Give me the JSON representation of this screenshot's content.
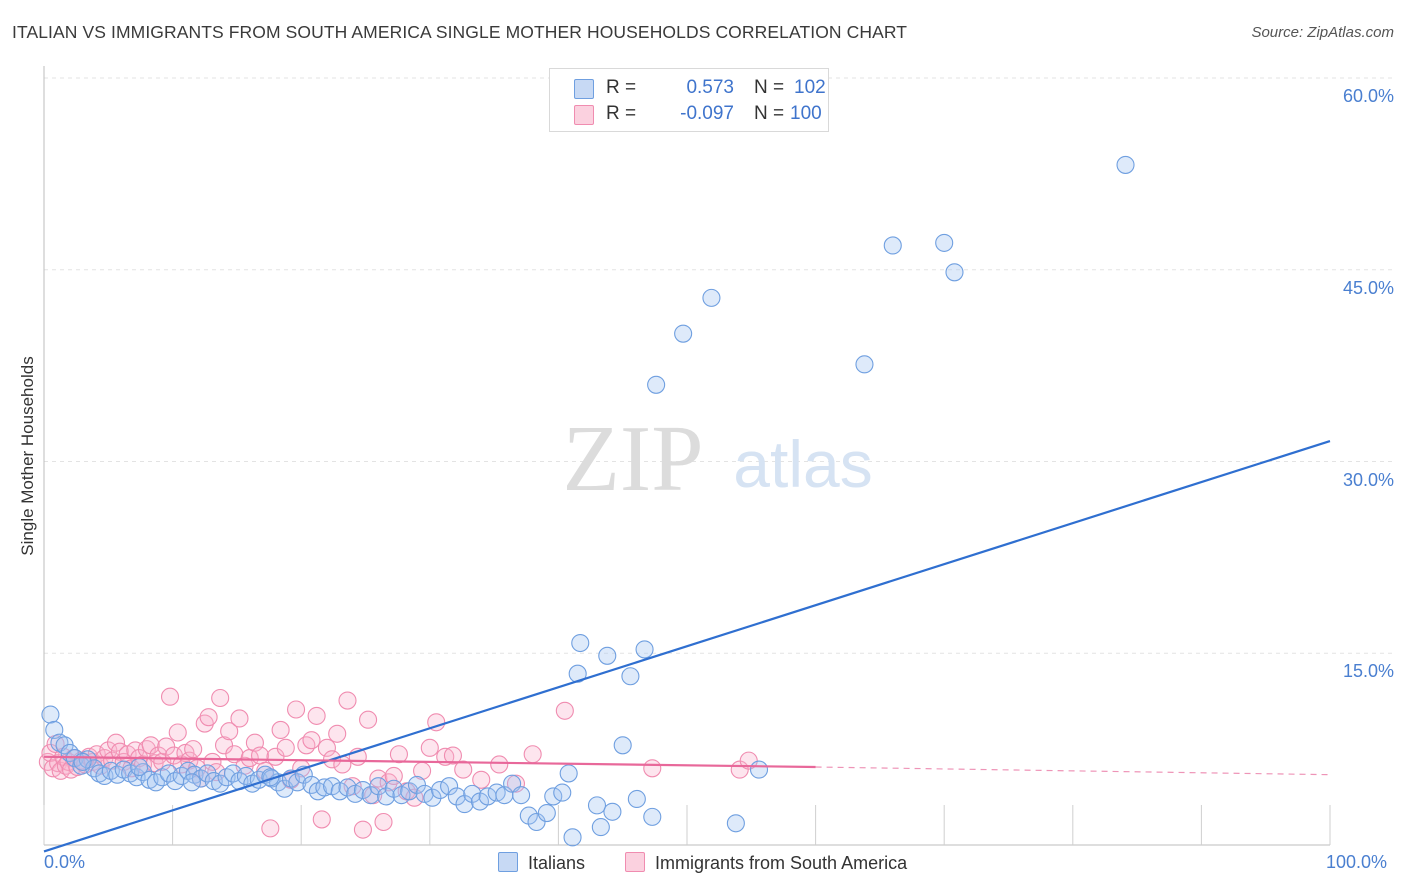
{
  "title": "ITALIAN VS IMMIGRANTS FROM SOUTH AMERICA SINGLE MOTHER HOUSEHOLDS CORRELATION CHART",
  "source": "Source: ZipAtlas.com",
  "watermark": {
    "zip": "ZIP",
    "atlas": "atlas"
  },
  "stats": {
    "r_label": "R =",
    "n_label": "N =",
    "rows": [
      {
        "series": "Italians",
        "r": "0.573",
        "n": "102",
        "color": "#6f9fe0"
      },
      {
        "series": "Immigrants from South America",
        "r": "-0.097",
        "n": "100",
        "color": "#f08cb0"
      }
    ]
  },
  "legend": [
    {
      "label": "Italians",
      "color": "#6f9fe0"
    },
    {
      "label": "Immigrants from South America",
      "color": "#f08cb0"
    }
  ],
  "chart_data": {
    "type": "scatter",
    "ylabel": "Single Mother Households",
    "xlim": [
      0,
      100
    ],
    "ylim": [
      0,
      60
    ],
    "x_tick_labels": [
      "0.0%",
      "100.0%"
    ],
    "y_ticks": [
      15,
      30,
      45,
      60
    ],
    "y_tick_labels": [
      "15.0%",
      "30.0%",
      "45.0%",
      "60.0%"
    ],
    "grid": true,
    "series": [
      {
        "name": "Italians",
        "color": "#6f9fe0",
        "trend": {
          "x": [
            0,
            100
          ],
          "y": [
            -0.5,
            31.6
          ],
          "color": "#2f6fd0"
        },
        "points": [
          [
            0.5,
            10.2
          ],
          [
            0.8,
            9
          ],
          [
            1.2,
            8
          ],
          [
            1.6,
            7.8
          ],
          [
            2,
            7.2
          ],
          [
            2.4,
            6.8
          ],
          [
            2.9,
            6.2
          ],
          [
            3.4,
            6.7
          ],
          [
            3.9,
            6
          ],
          [
            4.3,
            5.6
          ],
          [
            4.7,
            5.4
          ],
          [
            5.2,
            5.8
          ],
          [
            5.7,
            5.5
          ],
          [
            6.2,
            5.9
          ],
          [
            6.7,
            5.6
          ],
          [
            7.2,
            5.3
          ],
          [
            7.7,
            5.7
          ],
          [
            8.2,
            5.1
          ],
          [
            8.7,
            4.9
          ],
          [
            9.2,
            5.3
          ],
          [
            9.7,
            5.6
          ],
          [
            10.2,
            5
          ],
          [
            10.7,
            5.4
          ],
          [
            11.2,
            5.8
          ],
          [
            11.7,
            5.5
          ],
          [
            12.2,
            5.2
          ],
          [
            12.7,
            5.6
          ],
          [
            13.2,
            5
          ],
          [
            13.7,
            4.8
          ],
          [
            14.2,
            5.3
          ],
          [
            14.7,
            5.6
          ],
          [
            15.2,
            5
          ],
          [
            15.7,
            5.4
          ],
          [
            16.2,
            4.8
          ],
          [
            16.7,
            5.1
          ],
          [
            17.2,
            5.5
          ],
          [
            17.7,
            5.2
          ],
          [
            18.2,
            4.9
          ],
          [
            18.7,
            4.4
          ],
          [
            19.2,
            5.2
          ],
          [
            19.7,
            4.9
          ],
          [
            20.2,
            5.5
          ],
          [
            20.8,
            4.7
          ],
          [
            21.3,
            4.2
          ],
          [
            21.8,
            4.5
          ],
          [
            22.4,
            4.6
          ],
          [
            23,
            4.2
          ],
          [
            23.6,
            4.5
          ],
          [
            24.2,
            4
          ],
          [
            24.8,
            4.3
          ],
          [
            25.4,
            3.9
          ],
          [
            26,
            4.6
          ],
          [
            26.6,
            3.8
          ],
          [
            27.2,
            4.4
          ],
          [
            27.8,
            3.9
          ],
          [
            28.4,
            4.2
          ],
          [
            29,
            4.7
          ],
          [
            29.6,
            4
          ],
          [
            30.2,
            3.7
          ],
          [
            30.8,
            4.3
          ],
          [
            31.5,
            4.6
          ],
          [
            32.1,
            3.8
          ],
          [
            32.7,
            3.2
          ],
          [
            33.3,
            4
          ],
          [
            33.9,
            3.4
          ],
          [
            34.5,
            3.8
          ],
          [
            35.2,
            4.1
          ],
          [
            35.8,
            3.9
          ],
          [
            36.4,
            4.8
          ],
          [
            37.1,
            3.9
          ],
          [
            37.7,
            2.3
          ],
          [
            38.3,
            1.8
          ],
          [
            39.1,
            2.5
          ],
          [
            39.6,
            3.8
          ],
          [
            40.3,
            4.1
          ],
          [
            40.8,
            5.6
          ],
          [
            41.1,
            0.6
          ],
          [
            41.5,
            13.4
          ],
          [
            41.7,
            15.8
          ],
          [
            43,
            3.1
          ],
          [
            43.3,
            1.4
          ],
          [
            43.8,
            14.8
          ],
          [
            44.2,
            2.6
          ],
          [
            45,
            7.8
          ],
          [
            45.6,
            13.2
          ],
          [
            46.1,
            3.6
          ],
          [
            46.7,
            15.3
          ],
          [
            47.3,
            2.2
          ],
          [
            47.6,
            36
          ],
          [
            49.7,
            40
          ],
          [
            51.9,
            42.8
          ],
          [
            53.8,
            1.7
          ],
          [
            55.6,
            5.9
          ],
          [
            63.8,
            37.6
          ],
          [
            66,
            46.9
          ],
          [
            70,
            47.1
          ],
          [
            70.8,
            44.8
          ],
          [
            84.1,
            53.2
          ],
          [
            3,
            6.5
          ],
          [
            7.4,
            6.1
          ],
          [
            11.5,
            4.9
          ],
          [
            17.6,
            5.3
          ]
        ]
      },
      {
        "name": "Immigrants from South America",
        "color": "#f08cb0",
        "trend": {
          "x": [
            0,
            60
          ],
          "y": [
            6.9,
            6.1
          ],
          "dash_to": [
            100,
            5.5
          ],
          "color": "#e8689a"
        },
        "points": [
          [
            0.3,
            6.5
          ],
          [
            0.5,
            7.2
          ],
          [
            0.7,
            6
          ],
          [
            0.9,
            7.9
          ],
          [
            1.1,
            6.4
          ],
          [
            1.3,
            5.8
          ],
          [
            1.5,
            6.9
          ],
          [
            1.7,
            6.2
          ],
          [
            1.9,
            6.5
          ],
          [
            2.1,
            5.9
          ],
          [
            2.3,
            6.8
          ],
          [
            2.6,
            6.1
          ],
          [
            2.9,
            6.6
          ],
          [
            3.2,
            6.3
          ],
          [
            3.5,
            6.9
          ],
          [
            3.8,
            6.5
          ],
          [
            4.1,
            7.1
          ],
          [
            4.4,
            6.2
          ],
          [
            4.7,
            6.8
          ],
          [
            5,
            7.4
          ],
          [
            5.3,
            6.6
          ],
          [
            5.6,
            8
          ],
          [
            5.9,
            7.3
          ],
          [
            6.2,
            6.5
          ],
          [
            6.5,
            7.1
          ],
          [
            6.8,
            6
          ],
          [
            7.1,
            7.4
          ],
          [
            7.4,
            6.8
          ],
          [
            7.7,
            6.3
          ],
          [
            8,
            7.5
          ],
          [
            8.3,
            7.8
          ],
          [
            8.6,
            6.4
          ],
          [
            8.9,
            7
          ],
          [
            9.2,
            6.5
          ],
          [
            9.5,
            7.7
          ],
          [
            9.8,
            11.6
          ],
          [
            10.1,
            7
          ],
          [
            10.4,
            8.8
          ],
          [
            10.7,
            6.3
          ],
          [
            11,
            7.2
          ],
          [
            11.3,
            6.6
          ],
          [
            11.6,
            7.5
          ],
          [
            11.9,
            6
          ],
          [
            12.2,
            5.2
          ],
          [
            12.5,
            9.5
          ],
          [
            12.8,
            10
          ],
          [
            13.1,
            6.5
          ],
          [
            13.4,
            5.7
          ],
          [
            13.7,
            11.5
          ],
          [
            14,
            7.8
          ],
          [
            14.4,
            8.9
          ],
          [
            14.8,
            7.1
          ],
          [
            15.2,
            9.9
          ],
          [
            15.6,
            6.2
          ],
          [
            16,
            6.8
          ],
          [
            16.4,
            8
          ],
          [
            16.8,
            7
          ],
          [
            17.2,
            5.8
          ],
          [
            17.6,
            1.3
          ],
          [
            18,
            6.9
          ],
          [
            18.4,
            9
          ],
          [
            18.8,
            7.6
          ],
          [
            19.2,
            5.1
          ],
          [
            19.6,
            10.6
          ],
          [
            20,
            6
          ],
          [
            20.4,
            7.8
          ],
          [
            20.8,
            8.2
          ],
          [
            21.2,
            10.1
          ],
          [
            21.6,
            2
          ],
          [
            22,
            7.6
          ],
          [
            22.4,
            6.7
          ],
          [
            22.8,
            8.7
          ],
          [
            23.2,
            6.3
          ],
          [
            23.6,
            11.3
          ],
          [
            24,
            4.6
          ],
          [
            24.4,
            6.9
          ],
          [
            24.8,
            1.2
          ],
          [
            25.2,
            9.8
          ],
          [
            25.6,
            3.9
          ],
          [
            26,
            5.2
          ],
          [
            26.4,
            1.8
          ],
          [
            26.8,
            4.9
          ],
          [
            27.2,
            5.4
          ],
          [
            27.6,
            7.1
          ],
          [
            28.2,
            4.2
          ],
          [
            28.8,
            3.7
          ],
          [
            29.4,
            5.8
          ],
          [
            30,
            7.6
          ],
          [
            30.5,
            9.6
          ],
          [
            31.2,
            6.9
          ],
          [
            31.8,
            7
          ],
          [
            32.6,
            5.9
          ],
          [
            34,
            5.1
          ],
          [
            35.4,
            6.3
          ],
          [
            36.7,
            4.8
          ],
          [
            38,
            7.1
          ],
          [
            40.5,
            10.5
          ],
          [
            47.3,
            6
          ],
          [
            54.1,
            5.9
          ],
          [
            54.8,
            6.6
          ]
        ]
      }
    ]
  }
}
